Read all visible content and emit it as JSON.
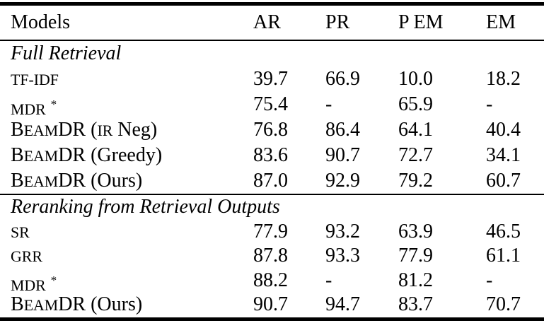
{
  "table": {
    "columns": [
      "Models",
      "AR",
      "PR",
      "P EM",
      "EM"
    ],
    "sections": [
      {
        "header": "Full Retrieval",
        "rows": [
          {
            "model_text": "TF-IDF",
            "model_parts": [
              [
                "TF-IDF",
                "sc"
              ]
            ],
            "values": [
              "39.7",
              "66.9",
              "10.0",
              "18.2"
            ]
          },
          {
            "model_text": "MDR *",
            "model_parts": [
              [
                "MDR",
                "sc"
              ],
              [
                " ",
                "n"
              ],
              [
                "*",
                "sup"
              ]
            ],
            "values": [
              "75.4",
              "-",
              "65.9",
              "-"
            ]
          },
          {
            "model_text": "BeamDR (IR Neg)",
            "model_parts": [
              [
                "B",
                "n"
              ],
              [
                "EAM",
                "sc"
              ],
              [
                "DR",
                "n"
              ],
              [
                " (",
                "n"
              ],
              [
                "IR",
                "sc"
              ],
              [
                " Neg)",
                "n"
              ]
            ],
            "values": [
              "76.8",
              "86.4",
              "64.1",
              "40.4"
            ]
          },
          {
            "model_text": "BeamDR (Greedy)",
            "model_parts": [
              [
                "B",
                "n"
              ],
              [
                "EAM",
                "sc"
              ],
              [
                "DR",
                "n"
              ],
              [
                " (Greedy)",
                "n"
              ]
            ],
            "values": [
              "83.6",
              "90.7",
              "72.7",
              "34.1"
            ]
          },
          {
            "model_text": "BeamDR (Ours)",
            "model_parts": [
              [
                "B",
                "n"
              ],
              [
                "EAM",
                "sc"
              ],
              [
                "DR",
                "n"
              ],
              [
                " (Ours)",
                "n"
              ]
            ],
            "values": [
              "87.0",
              "92.9",
              "79.2",
              "60.7"
            ]
          }
        ]
      },
      {
        "header": "Reranking from Retrieval Outputs",
        "rows": [
          {
            "model_text": "SR",
            "model_parts": [
              [
                "SR",
                "sc"
              ]
            ],
            "values": [
              "77.9",
              "93.2",
              "63.9",
              "46.5"
            ]
          },
          {
            "model_text": "GRR",
            "model_parts": [
              [
                "GRR",
                "sc"
              ]
            ],
            "values": [
              "87.8",
              "93.3",
              "77.9",
              "61.1"
            ]
          },
          {
            "model_text": "MDR *",
            "model_parts": [
              [
                "MDR",
                "sc"
              ],
              [
                " ",
                "n"
              ],
              [
                "*",
                "sup"
              ]
            ],
            "values": [
              "88.2",
              "-",
              "81.2",
              "-"
            ]
          },
          {
            "model_text": "BeamDR (Ours)",
            "model_parts": [
              [
                "B",
                "n"
              ],
              [
                "EAM",
                "sc"
              ],
              [
                "DR",
                "n"
              ],
              [
                " (Ours)",
                "n"
              ]
            ],
            "values": [
              "90.7",
              "94.7",
              "83.7",
              "70.7"
            ]
          }
        ]
      }
    ]
  },
  "chart_data": {
    "type": "table",
    "title": "",
    "columns": [
      "Models",
      "AR",
      "PR",
      "P EM",
      "EM"
    ],
    "rows": [
      {
        "section": "Full Retrieval",
        "model": "TF-IDF",
        "AR": 39.7,
        "PR": 66.9,
        "P EM": 10.0,
        "EM": 18.2
      },
      {
        "section": "Full Retrieval",
        "model": "MDR *",
        "AR": 75.4,
        "PR": null,
        "P EM": 65.9,
        "EM": null
      },
      {
        "section": "Full Retrieval",
        "model": "BeamDR (IR Neg)",
        "AR": 76.8,
        "PR": 86.4,
        "P EM": 64.1,
        "EM": 40.4
      },
      {
        "section": "Full Retrieval",
        "model": "BeamDR (Greedy)",
        "AR": 83.6,
        "PR": 90.7,
        "P EM": 72.7,
        "EM": 34.1
      },
      {
        "section": "Full Retrieval",
        "model": "BeamDR (Ours)",
        "AR": 87.0,
        "PR": 92.9,
        "P EM": 79.2,
        "EM": 60.7
      },
      {
        "section": "Reranking from Retrieval Outputs",
        "model": "SR",
        "AR": 77.9,
        "PR": 93.2,
        "P EM": 63.9,
        "EM": 46.5
      },
      {
        "section": "Reranking from Retrieval Outputs",
        "model": "GRR",
        "AR": 87.8,
        "PR": 93.3,
        "P EM": 77.9,
        "EM": 61.1
      },
      {
        "section": "Reranking from Retrieval Outputs",
        "model": "MDR *",
        "AR": 88.2,
        "PR": null,
        "P EM": 81.2,
        "EM": null
      },
      {
        "section": "Reranking from Retrieval Outputs",
        "model": "BeamDR (Ours)",
        "AR": 90.7,
        "PR": 94.7,
        "P EM": 83.7,
        "EM": 70.7
      }
    ],
    "colors": {
      "text": "#000000",
      "background": "#ffffff",
      "rule": "#000000"
    }
  }
}
